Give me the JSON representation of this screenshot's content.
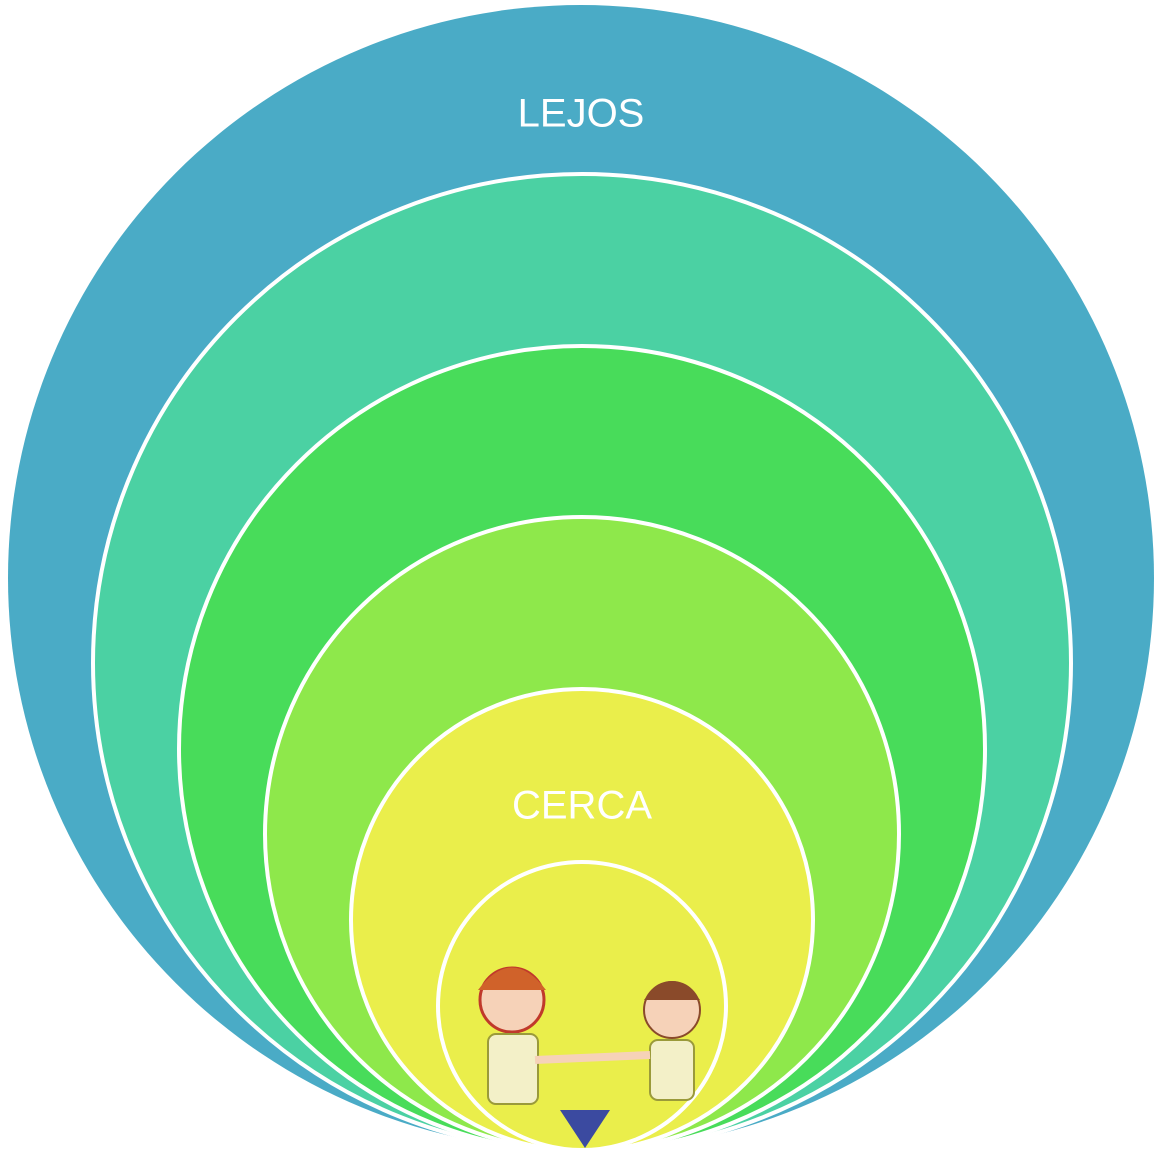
{
  "diagram": {
    "outer_label": "LEJOS",
    "inner_label": "CERCA"
  }
}
